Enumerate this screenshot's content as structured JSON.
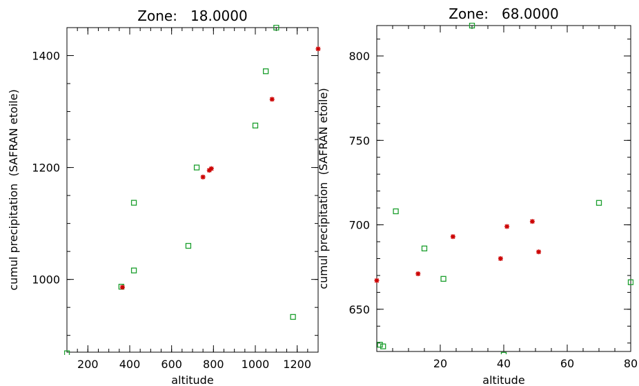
{
  "chart_data": [
    {
      "type": "scatter",
      "title": "Zone:   18.0000",
      "xlabel": "altitude",
      "ylabel": "cumul precipitation  (SAFRAN etoile)",
      "xlim": [
        100,
        1300
      ],
      "ylim": [
        870,
        1450
      ],
      "xticks": [
        200,
        400,
        600,
        800,
        1000,
        1200
      ],
      "yticks": [
        1000,
        1200,
        1400
      ],
      "grid": false,
      "series": [
        {
          "marker": "square",
          "color": "#1a9e2c",
          "points": [
            [
              100,
              868
            ],
            [
              360,
              987
            ],
            [
              420,
              1137
            ],
            [
              420,
              1016
            ],
            [
              680,
              1060
            ],
            [
              720,
              1200
            ],
            [
              1000,
              1275
            ],
            [
              1050,
              1372
            ],
            [
              1100,
              1450
            ],
            [
              1180,
              933
            ]
          ]
        },
        {
          "marker": "star",
          "color": "#cc0000",
          "points": [
            [
              365,
              986
            ],
            [
              750,
              1183
            ],
            [
              780,
              1195
            ],
            [
              790,
              1198
            ],
            [
              1080,
              1322
            ],
            [
              1300,
              1412
            ]
          ]
        }
      ]
    },
    {
      "type": "scatter",
      "title": "Zone:   68.0000",
      "xlabel": "altitude",
      "ylabel": "cumul precipitation  (SAFRAN etoile)",
      "xlim": [
        0,
        80
      ],
      "ylim": [
        625,
        818
      ],
      "xticks": [
        20,
        40,
        60,
        80
      ],
      "yticks": [
        650,
        700,
        750,
        800
      ],
      "grid": false,
      "series": [
        {
          "marker": "square",
          "color": "#1a9e2c",
          "points": [
            [
              1,
              629
            ],
            [
              2,
              628
            ],
            [
              6,
              708
            ],
            [
              15,
              686
            ],
            [
              21,
              668
            ],
            [
              30,
              818
            ],
            [
              40,
              623
            ],
            [
              70,
              713
            ],
            [
              80,
              666
            ]
          ]
        },
        {
          "marker": "star",
          "color": "#cc0000",
          "points": [
            [
              0,
              667
            ],
            [
              13,
              671
            ],
            [
              24,
              693
            ],
            [
              39,
              680
            ],
            [
              41,
              699
            ],
            [
              49,
              702
            ],
            [
              51,
              684
            ]
          ]
        }
      ]
    }
  ]
}
